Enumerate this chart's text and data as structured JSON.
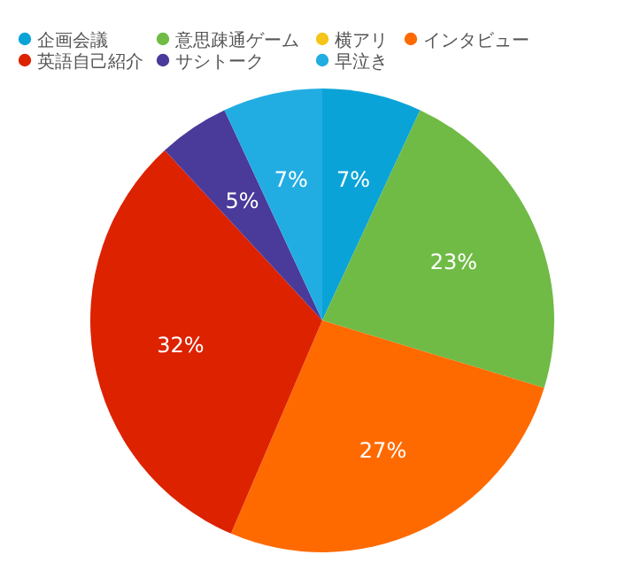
{
  "chart_data": {
    "type": "pie",
    "categories": [
      "企画会議",
      "意思疎通ゲーム",
      "横アリ",
      "インタビュー",
      "英語自己紹介",
      "サシトーク",
      "早泣き"
    ],
    "values": [
      7,
      23,
      0,
      27,
      32,
      5,
      7
    ],
    "colors": [
      "#0aa3d8",
      "#6fbb45",
      "#f5c518",
      "#ff6a00",
      "#dd2200",
      "#4a3a9a",
      "#22ade2"
    ],
    "value_labels": [
      "7%",
      "23%",
      null,
      "27%",
      "32%",
      "5%",
      "7%"
    ],
    "legend": "top"
  }
}
